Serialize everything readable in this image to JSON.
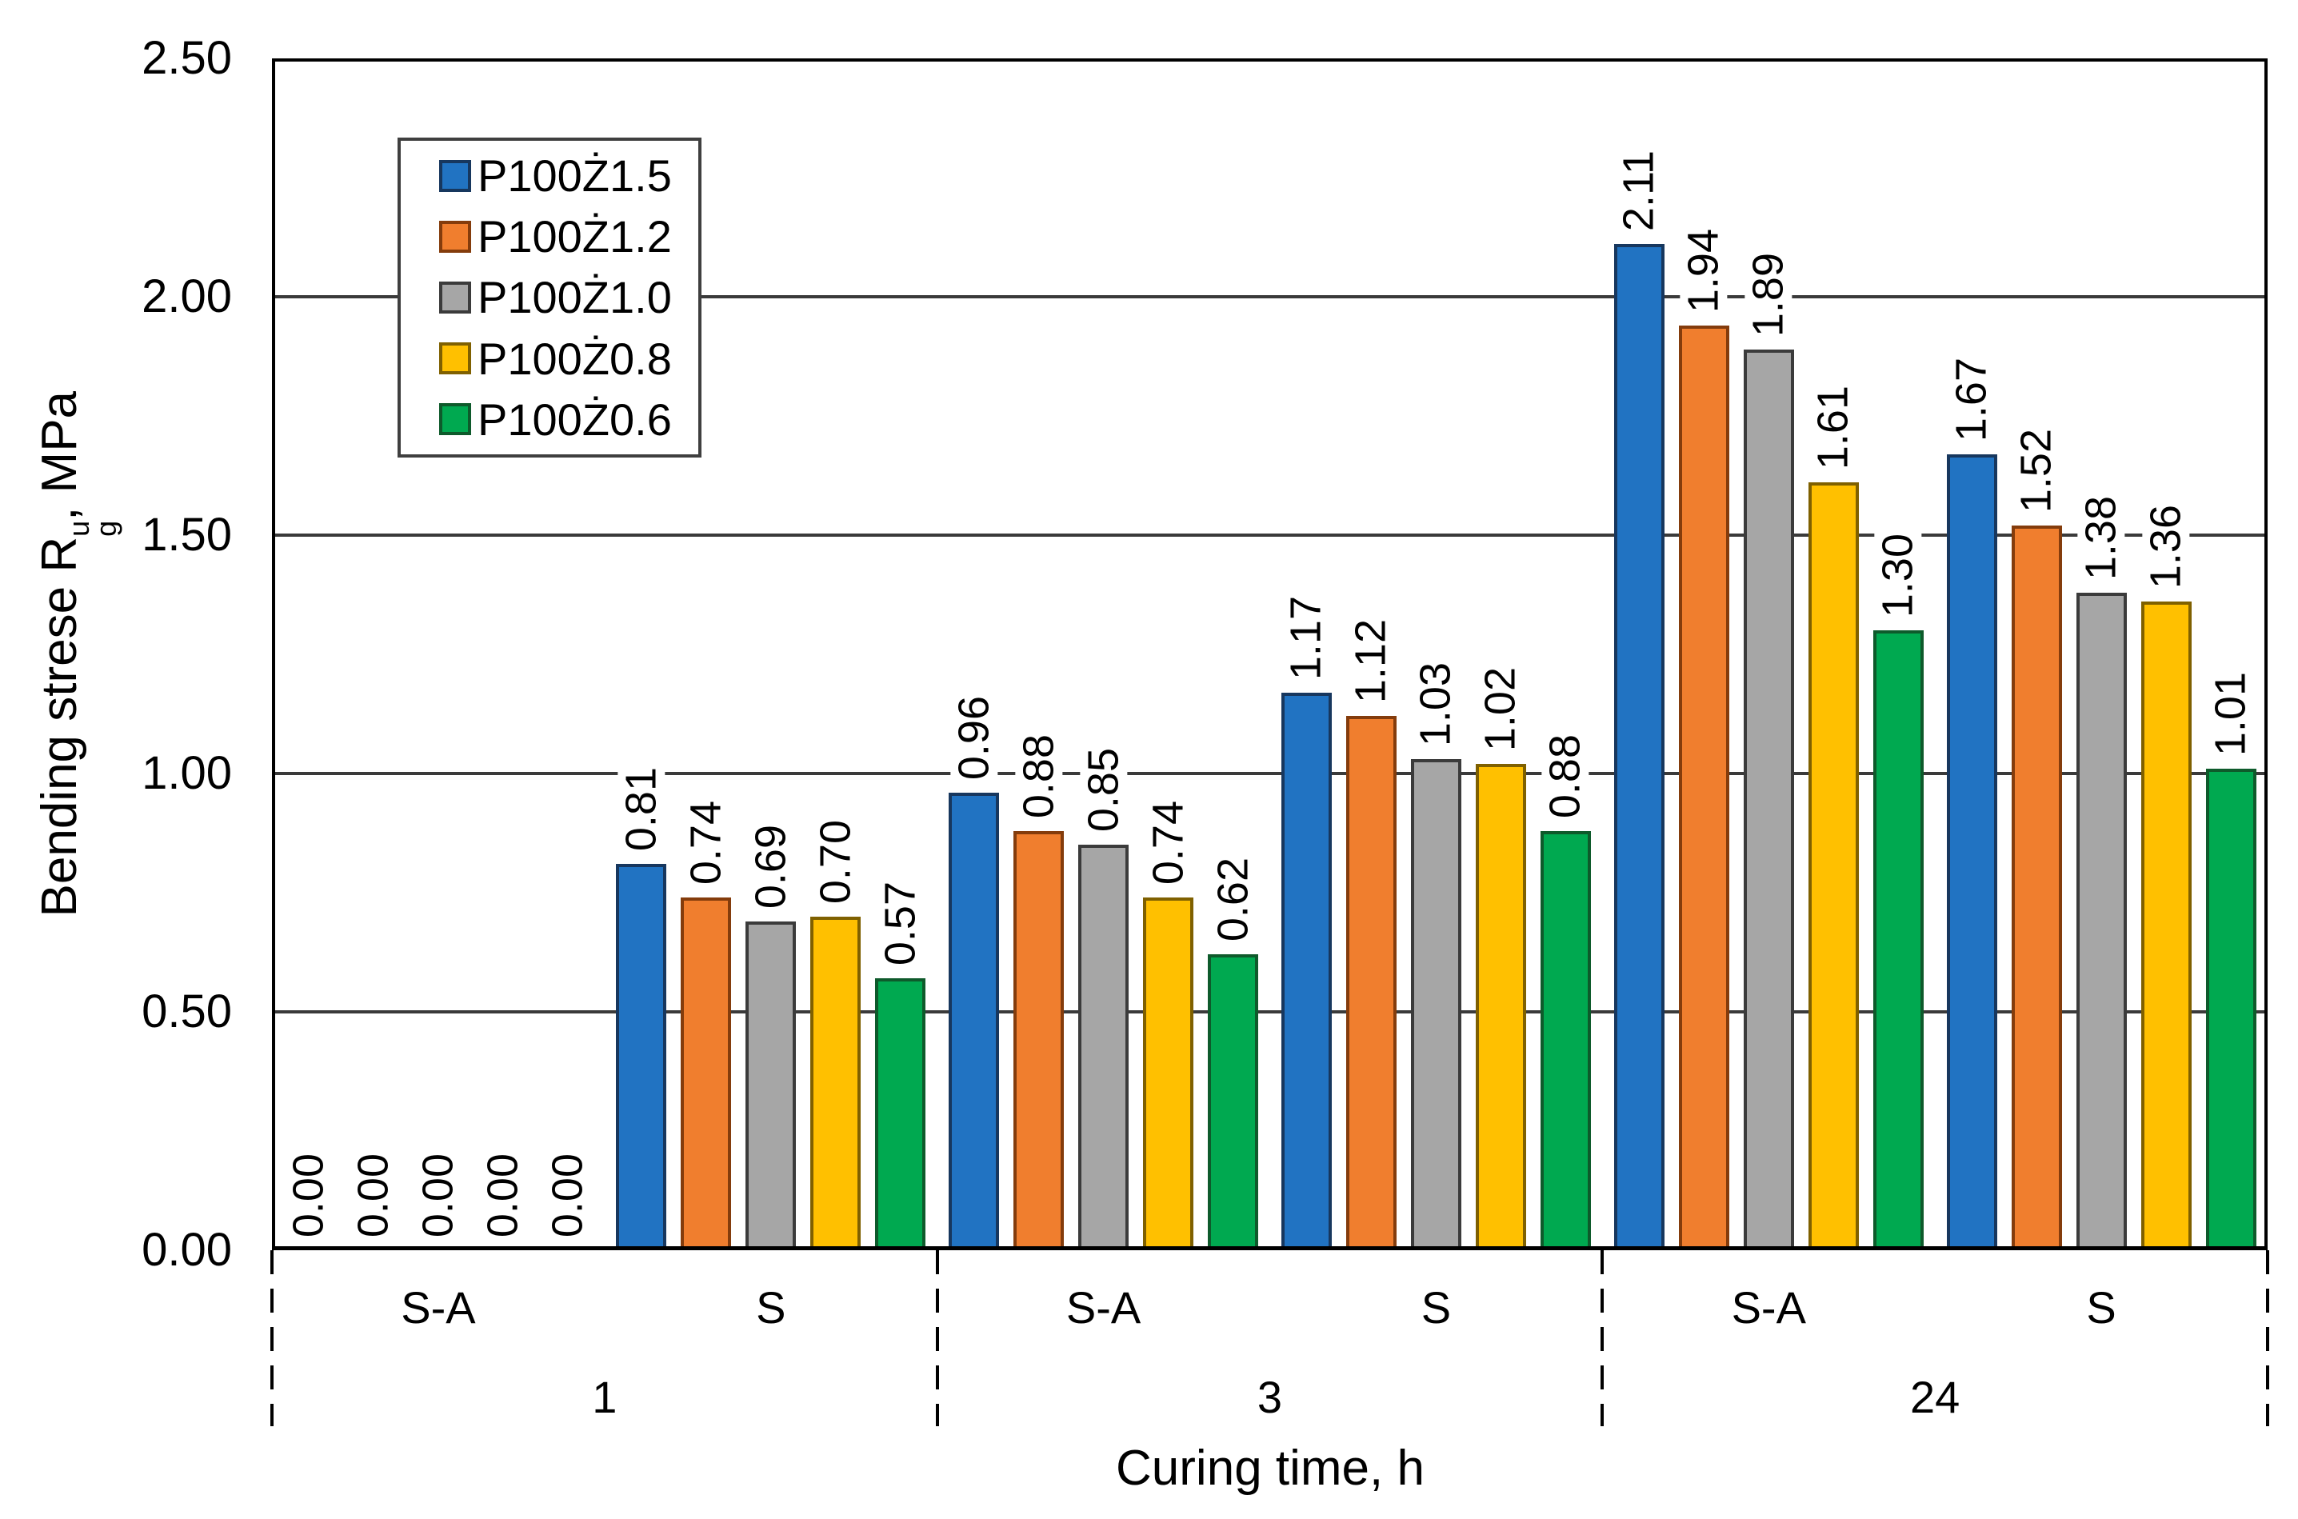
{
  "chart_data": {
    "type": "bar",
    "title": "",
    "ylabel": "Bending strese R_g^u, MPa",
    "ylabel_parts": {
      "prefix": "Bending strese R",
      "sup": "u",
      "sub": "g",
      "suffix": ", MPa"
    },
    "xlabel": "Curing time, h",
    "ylim": [
      0,
      2.5
    ],
    "ytick_step": 0.5,
    "ytick_labels": [
      "0.00",
      "0.50",
      "1.00",
      "1.50",
      "2.00",
      "2.50"
    ],
    "grid": true,
    "legend_position": "upper-left-inside",
    "value_label_style": "rotated 90deg, two decimals, above each bar",
    "group_labels": [
      "1",
      "3",
      "24"
    ],
    "subgroup_labels": [
      "S-A",
      "S"
    ],
    "categories": [
      "1 S-A",
      "1 S",
      "3 S-A",
      "3 S",
      "24 S-A",
      "24 S"
    ],
    "series": [
      {
        "name": "P100Ż1.5",
        "color": "#2173C2",
        "border_color": "#17375E",
        "values": [
          0.0,
          0.81,
          0.96,
          1.17,
          2.11,
          1.67
        ]
      },
      {
        "name": "P100Ż1.2",
        "color": "#F07E2E",
        "border_color": "#843C0C",
        "values": [
          0.0,
          0.74,
          0.88,
          1.12,
          1.94,
          1.52
        ]
      },
      {
        "name": "P100Ż1.0",
        "color": "#A6A6A6",
        "border_color": "#3B3B3B",
        "values": [
          0.0,
          0.69,
          0.85,
          1.03,
          1.89,
          1.38
        ]
      },
      {
        "name": "P100Ż0.8",
        "color": "#FFC000",
        "border_color": "#7F6000",
        "values": [
          0.0,
          0.7,
          0.74,
          1.02,
          1.61,
          1.36
        ]
      },
      {
        "name": "P100Ż0.6",
        "color": "#00A950",
        "border_color": "#0E5A2B",
        "values": [
          0.0,
          0.57,
          0.62,
          0.88,
          1.3,
          1.01
        ]
      }
    ]
  }
}
